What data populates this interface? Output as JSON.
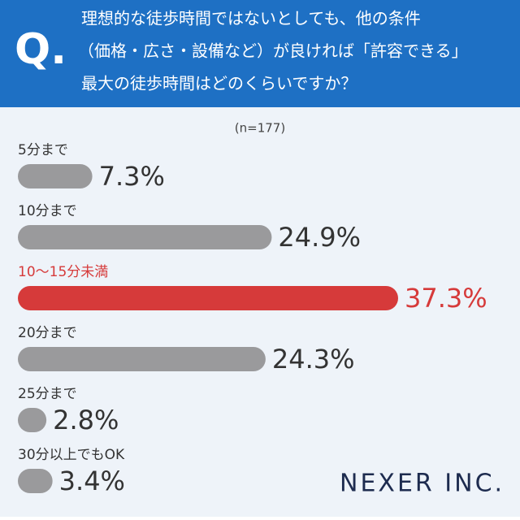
{
  "chart_data": {
    "type": "bar",
    "orientation": "horizontal",
    "question_label": "Q.",
    "title": [
      "理想的な徒歩時間ではないとしても、他の条件",
      "（価格・広さ・設備など）が良ければ「許容できる」",
      "最大の徒歩時間はどのくらいですか？"
    ],
    "subtitle": "(n=177)",
    "categories": [
      "5分まで",
      "10分まで",
      "10〜15分未満",
      "20分まで",
      "25分まで",
      "30分以上でもOK"
    ],
    "values": [
      7.3,
      24.9,
      37.3,
      24.3,
      2.8,
      3.4
    ],
    "value_labels": [
      "7.3%",
      "24.9%",
      "37.3%",
      "24.3%",
      "2.8%",
      "3.4%"
    ],
    "colors": [
      "#9a9a9c",
      "#9a9a9c",
      "#d63a3a",
      "#9a9a9c",
      "#9a9a9c",
      "#9a9a9c"
    ],
    "label_colors": [
      "#333333",
      "#333333",
      "#d63a3a",
      "#333333",
      "#333333",
      "#333333"
    ],
    "brand": "NEXER INC."
  }
}
